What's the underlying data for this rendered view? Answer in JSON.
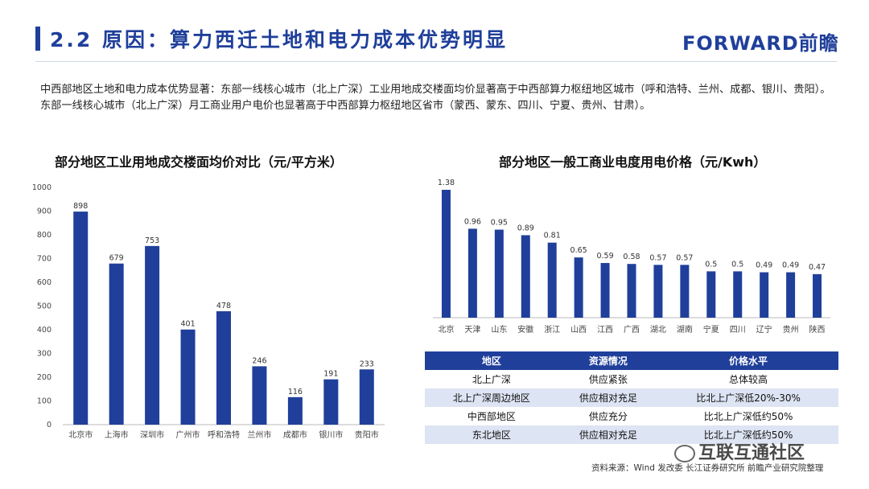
{
  "header": {
    "title": "2.2 原因：算力西迁土地和电力成本优势明显",
    "logo": "FORWARD前瞻"
  },
  "intro": "中西部地区土地和电力成本优势显著：东部一线核心城市（北上广深）工业用地成交楼面均价显著高于中西部算力枢纽地区城市（呼和浩特、兰州、成都、银川、贵阳）。东部一线核心城市（北上广深）月工商业用户电价也显著高于中西部算力枢纽地区省市（蒙西、蒙东、四川、宁夏、贵州、甘肃）。",
  "chart_data": [
    {
      "type": "bar",
      "title": "部分地区工业用地成交楼面均价对比（元/平方米）",
      "categories": [
        "北京市",
        "上海市",
        "深圳市",
        "广州市",
        "呼和浩特",
        "兰州市",
        "成都市",
        "银川市",
        "贵阳市"
      ],
      "values": [
        898,
        679,
        753,
        401,
        478,
        246,
        116,
        191,
        233
      ],
      "value_labels": [
        "898",
        "679",
        "753",
        "401",
        "478",
        "246",
        "116",
        "191",
        "233"
      ],
      "ylim": [
        0,
        1000
      ],
      "yticks": [
        "0",
        "100",
        "200",
        "300",
        "400",
        "500",
        "600",
        "700",
        "800",
        "900",
        "1000"
      ],
      "color": "#1f3f9a",
      "grid": false
    },
    {
      "type": "bar",
      "title": "部分地区一般工商业电度用电价格（元/Kwh）",
      "categories": [
        "北京",
        "天津",
        "山东",
        "安徽",
        "浙江",
        "山西",
        "江西",
        "广西",
        "湖北",
        "湖南",
        "宁夏",
        "四川",
        "辽宁",
        "贵州",
        "陕西"
      ],
      "values": [
        1.38,
        0.96,
        0.95,
        0.89,
        0.81,
        0.65,
        0.59,
        0.58,
        0.57,
        0.57,
        0.5,
        0.5,
        0.49,
        0.49,
        0.47
      ],
      "value_labels": [
        "1.38",
        "0.96",
        "0.95",
        "0.89",
        "0.81",
        "0.65",
        "0.59",
        "0.58",
        "0.57",
        "0.57",
        "0.5",
        "0.5",
        "0.49",
        "0.49",
        "0.47"
      ],
      "color": "#1f3f9a",
      "grid": false
    }
  ],
  "table": {
    "headers": [
      "地区",
      "资源情况",
      "价格水平"
    ],
    "rows": [
      [
        "北上广深",
        "供应紧张",
        "总体较高"
      ],
      [
        "北上广深周边地区",
        "供应相对充足",
        "比北上广深低20%-30%"
      ],
      [
        "中西部地区",
        "供应充分",
        "比北上广深低约50%"
      ],
      [
        "东北地区",
        "供应相对充足",
        "比北上广深低约50%"
      ]
    ]
  },
  "source": "资料来源：Wind 发改委 长江证券研究所 前瞻产业研究院整理",
  "watermark": "互联互通社区"
}
